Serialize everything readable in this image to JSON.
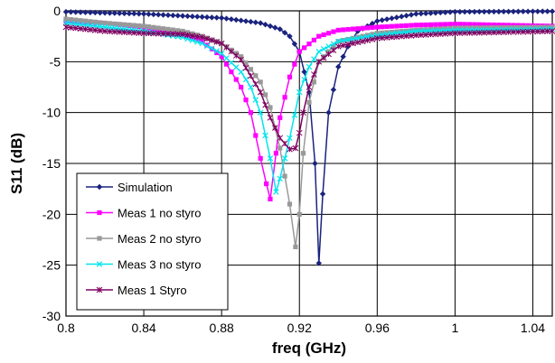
{
  "chart_data": {
    "type": "line",
    "title": "",
    "xlabel": "freq (GHz)",
    "ylabel": "S11 (dB)",
    "xlim": [
      0.8,
      1.05
    ],
    "ylim": [
      -30,
      0
    ],
    "xticks": [
      "0.8",
      "0.84",
      "0.88",
      "0.92",
      "0.96",
      "1",
      "1.04"
    ],
    "yticks": [
      "0",
      "-5",
      "-10",
      "-15",
      "-20",
      "-25",
      "-30"
    ],
    "grid": true,
    "legend_position": "bottom-left",
    "series": [
      {
        "name": "Simulation",
        "color": "#1a237e",
        "marker": "diamond",
        "x": [
          0.8,
          0.84,
          0.88,
          0.9,
          0.91,
          0.915,
          0.92,
          0.925,
          0.928,
          0.93,
          0.932,
          0.935,
          0.94,
          0.945,
          0.95,
          0.96,
          0.98,
          1.0,
          1.05
        ],
        "y": [
          -0.1,
          -0.3,
          -0.7,
          -1.2,
          -1.8,
          -2.5,
          -4.0,
          -8.0,
          -15.0,
          -24.8,
          -18.0,
          -10.0,
          -5.5,
          -3.5,
          -2.0,
          -1.0,
          -0.3,
          -0.1,
          -0.05
        ]
      },
      {
        "name": "Meas 1 no styro",
        "color": "#ff00ff",
        "marker": "square",
        "x": [
          0.8,
          0.82,
          0.84,
          0.86,
          0.87,
          0.88,
          0.89,
          0.895,
          0.9,
          0.903,
          0.905,
          0.908,
          0.91,
          0.915,
          0.92,
          0.93,
          0.94,
          0.96,
          0.98,
          1.0,
          1.05
        ],
        "y": [
          -1.0,
          -1.2,
          -1.6,
          -2.3,
          -3.0,
          -4.5,
          -7.5,
          -10.0,
          -14.5,
          -17.0,
          -18.5,
          -14.0,
          -10.5,
          -6.5,
          -4.0,
          -2.5,
          -1.9,
          -1.6,
          -1.4,
          -1.3,
          -1.5
        ]
      },
      {
        "name": "Meas 2 no styro",
        "color": "#999999",
        "marker": "square",
        "x": [
          0.8,
          0.82,
          0.84,
          0.86,
          0.87,
          0.88,
          0.89,
          0.9,
          0.905,
          0.91,
          0.915,
          0.918,
          0.92,
          0.922,
          0.925,
          0.93,
          0.94,
          0.96,
          0.98,
          1.0,
          1.05
        ],
        "y": [
          -0.8,
          -1.2,
          -1.5,
          -2.0,
          -2.5,
          -3.2,
          -4.5,
          -7.0,
          -9.5,
          -13.5,
          -19.0,
          -23.2,
          -20.0,
          -14.0,
          -9.0,
          -5.0,
          -3.0,
          -2.2,
          -1.9,
          -1.7,
          -1.6
        ]
      },
      {
        "name": "Meas 3 no styro",
        "color": "#00e5ee",
        "marker": "x",
        "x": [
          0.8,
          0.82,
          0.84,
          0.86,
          0.87,
          0.88,
          0.89,
          0.895,
          0.9,
          0.905,
          0.908,
          0.91,
          0.915,
          0.92,
          0.925,
          0.93,
          0.94,
          0.96,
          0.98,
          1.0,
          1.05
        ],
        "y": [
          -1.2,
          -1.6,
          -2.0,
          -2.6,
          -3.2,
          -4.2,
          -6.0,
          -7.5,
          -10.0,
          -14.5,
          -17.8,
          -16.5,
          -12.5,
          -8.0,
          -5.5,
          -4.0,
          -3.0,
          -2.4,
          -2.0,
          -1.9,
          -1.8
        ]
      },
      {
        "name": "Meas 1 Styro",
        "color": "#800060",
        "marker": "asterisk",
        "x": [
          0.8,
          0.82,
          0.84,
          0.86,
          0.87,
          0.88,
          0.89,
          0.9,
          0.905,
          0.91,
          0.915,
          0.918,
          0.92,
          0.922,
          0.925,
          0.93,
          0.94,
          0.96,
          0.98,
          1.0,
          1.05
        ],
        "y": [
          -1.6,
          -2.0,
          -2.2,
          -2.3,
          -2.6,
          -3.2,
          -4.8,
          -8.0,
          -10.5,
          -12.5,
          -13.6,
          -13.5,
          -12.0,
          -10.0,
          -7.5,
          -5.0,
          -3.5,
          -2.7,
          -2.4,
          -2.2,
          -2.0
        ]
      }
    ]
  }
}
